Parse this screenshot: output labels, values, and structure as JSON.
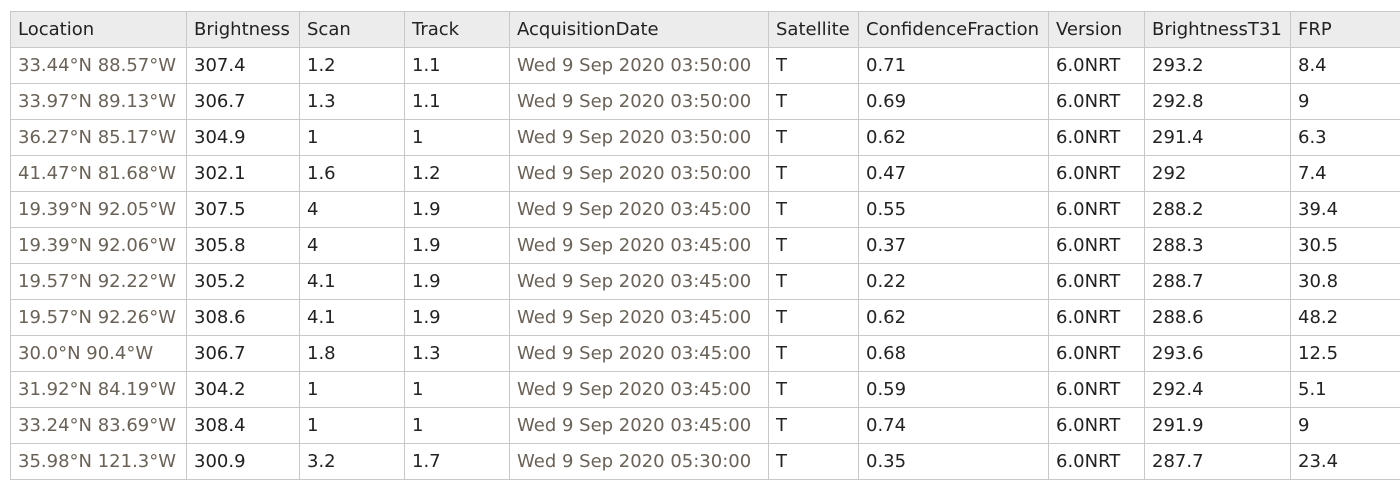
{
  "table": {
    "columns": [
      "Location",
      "Brightness",
      "Scan",
      "Track",
      "AcquisitionDate",
      "Satellite",
      "ConfidenceFraction",
      "Version",
      "BrightnessT31",
      "FRP"
    ],
    "rows": [
      [
        "33.44°N 88.57°W",
        "307.4",
        "1.2",
        "1.1",
        "Wed 9 Sep 2020 03:50:00",
        "T",
        "0.71",
        "6.0NRT",
        "293.2",
        "8.4"
      ],
      [
        "33.97°N 89.13°W",
        "306.7",
        "1.3",
        "1.1",
        "Wed 9 Sep 2020 03:50:00",
        "T",
        "0.69",
        "6.0NRT",
        "292.8",
        "9"
      ],
      [
        "36.27°N 85.17°W",
        "304.9",
        "1",
        "1",
        "Wed 9 Sep 2020 03:50:00",
        "T",
        "0.62",
        "6.0NRT",
        "291.4",
        "6.3"
      ],
      [
        "41.47°N 81.68°W",
        "302.1",
        "1.6",
        "1.2",
        "Wed 9 Sep 2020 03:50:00",
        "T",
        "0.47",
        "6.0NRT",
        "292",
        "7.4"
      ],
      [
        "19.39°N 92.05°W",
        "307.5",
        "4",
        "1.9",
        "Wed 9 Sep 2020 03:45:00",
        "T",
        "0.55",
        "6.0NRT",
        "288.2",
        "39.4"
      ],
      [
        "19.39°N 92.06°W",
        "305.8",
        "4",
        "1.9",
        "Wed 9 Sep 2020 03:45:00",
        "T",
        "0.37",
        "6.0NRT",
        "288.3",
        "30.5"
      ],
      [
        "19.57°N 92.22°W",
        "305.2",
        "4.1",
        "1.9",
        "Wed 9 Sep 2020 03:45:00",
        "T",
        "0.22",
        "6.0NRT",
        "288.7",
        "30.8"
      ],
      [
        "19.57°N 92.26°W",
        "308.6",
        "4.1",
        "1.9",
        "Wed 9 Sep 2020 03:45:00",
        "T",
        "0.62",
        "6.0NRT",
        "288.6",
        "48.2"
      ],
      [
        "30.0°N 90.4°W",
        "306.7",
        "1.8",
        "1.3",
        "Wed 9 Sep 2020 03:45:00",
        "T",
        "0.68",
        "6.0NRT",
        "293.6",
        "12.5"
      ],
      [
        "31.92°N 84.19°W",
        "304.2",
        "1",
        "1",
        "Wed 9 Sep 2020 03:45:00",
        "T",
        "0.59",
        "6.0NRT",
        "292.4",
        "5.1"
      ],
      [
        "33.24°N 83.69°W",
        "308.4",
        "1",
        "1",
        "Wed 9 Sep 2020 03:45:00",
        "T",
        "0.74",
        "6.0NRT",
        "291.9",
        "9"
      ],
      [
        "35.98°N 121.3°W",
        "300.9",
        "3.2",
        "1.7",
        "Wed 9 Sep 2020 05:30:00",
        "T",
        "0.35",
        "6.0NRT",
        "287.7",
        "23.4"
      ]
    ]
  }
}
